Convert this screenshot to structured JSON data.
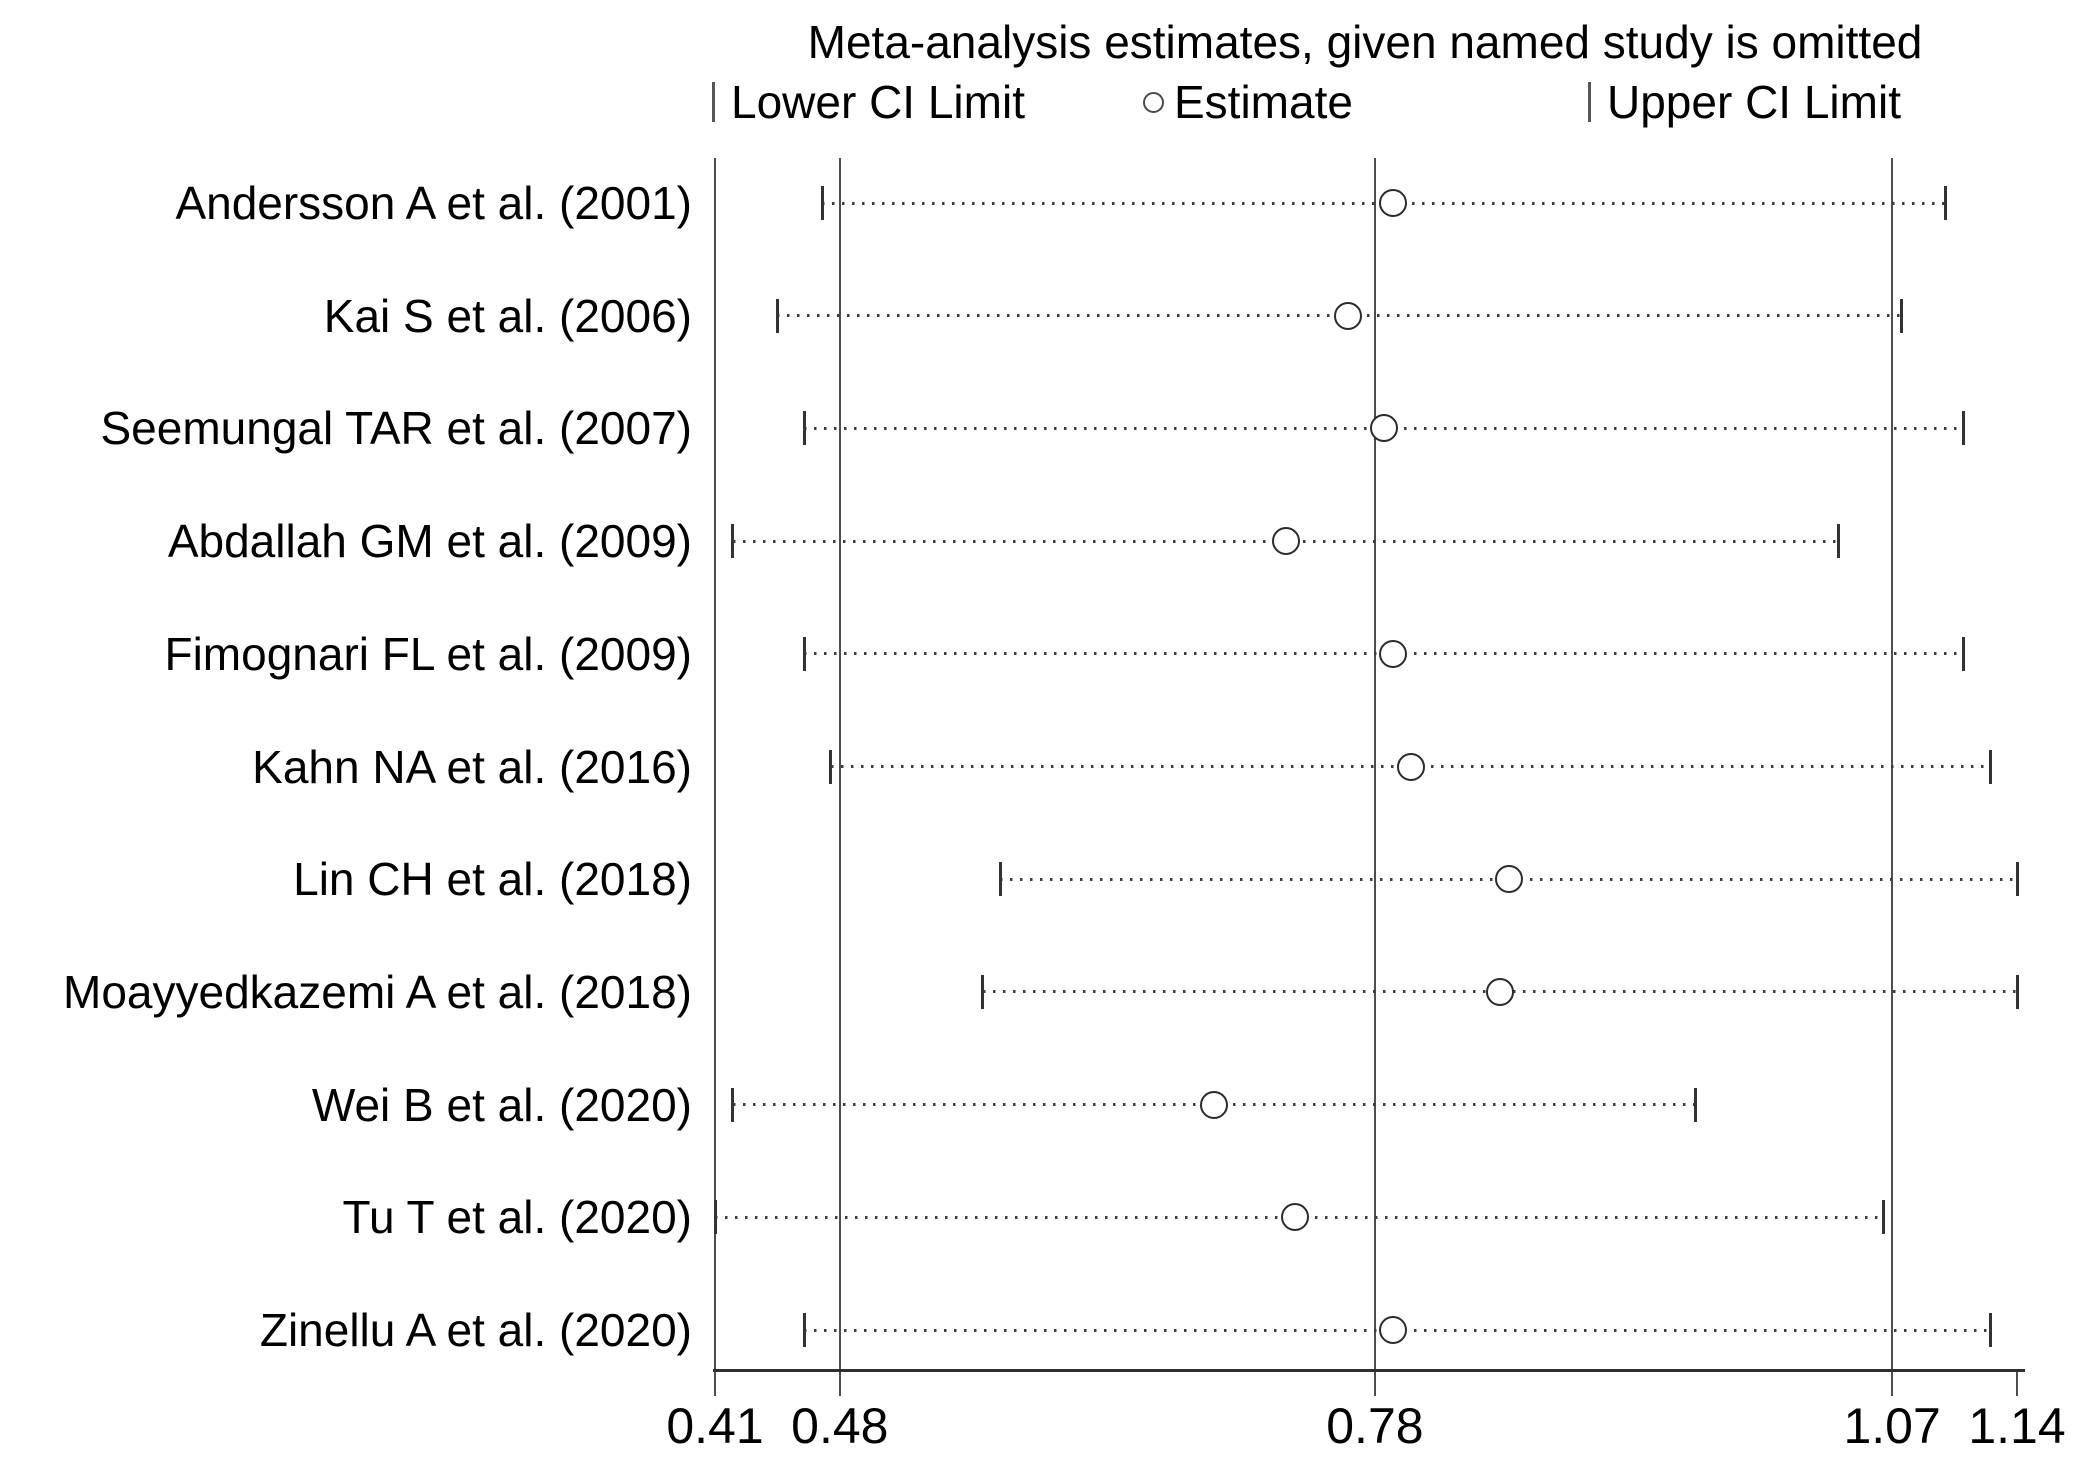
{
  "figure": {
    "title": "Meta-analysis estimates, given named study is omitted",
    "legend": {
      "lower_label": "Lower CI Limit",
      "estimate_label": "Estimate",
      "upper_label": "Upper CI Limit"
    },
    "colors": {
      "background": "#ffffff",
      "text": "#000000",
      "gridline": "#4d4d4d",
      "ci_dots": "#3d3d3d",
      "marker_stroke": "#2b2b2b"
    }
  },
  "chart_data": {
    "type": "scatter",
    "subtype": "leave-one-out-forest",
    "title": "Meta-analysis estimates, given named study is omitted",
    "legend": [
      "Lower CI Limit",
      "Estimate",
      "Upper CI Limit"
    ],
    "legend_position": "top",
    "grid": "vertical-reference-lines-only",
    "x_axis": {
      "range": [
        0.41,
        1.14
      ],
      "tick_labels": [
        "0.41",
        "0.48",
        "0.78",
        "1.07",
        "1.14"
      ],
      "vertical_reference_lines": [
        0.41,
        0.48,
        0.78,
        1.07
      ]
    },
    "pooled": {
      "lower": 0.48,
      "estimate": 0.78,
      "upper": 1.07
    },
    "studies": [
      {
        "label": "Andersson A et al. (2001)",
        "lower": 0.47,
        "estimate": 0.79,
        "upper": 1.1
      },
      {
        "label": "Kai S et al. (2006)",
        "lower": 0.445,
        "estimate": 0.765,
        "upper": 1.075
      },
      {
        "label": "Seemungal TAR et al. (2007)",
        "lower": 0.46,
        "estimate": 0.785,
        "upper": 1.11
      },
      {
        "label": "Abdallah GM et al. (2009)",
        "lower": 0.42,
        "estimate": 0.73,
        "upper": 1.04
      },
      {
        "label": "Fimognari FL et al. (2009)",
        "lower": 0.46,
        "estimate": 0.79,
        "upper": 1.11
      },
      {
        "label": "Kahn NA et al. (2016)",
        "lower": 0.475,
        "estimate": 0.8,
        "upper": 1.125
      },
      {
        "label": "Lin CH et al. (2018)",
        "lower": 0.57,
        "estimate": 0.855,
        "upper": 1.14
      },
      {
        "label": "Moayyedkazemi A et al. (2018)",
        "lower": 0.56,
        "estimate": 0.85,
        "upper": 1.14
      },
      {
        "label": "Wei B et al. (2020)",
        "lower": 0.42,
        "estimate": 0.69,
        "upper": 0.96
      },
      {
        "label": "Tu T et al. (2020)",
        "lower": 0.41,
        "estimate": 0.735,
        "upper": 1.065
      },
      {
        "label": "Zinellu A et al. (2020)",
        "lower": 0.46,
        "estimate": 0.79,
        "upper": 1.125
      }
    ]
  }
}
